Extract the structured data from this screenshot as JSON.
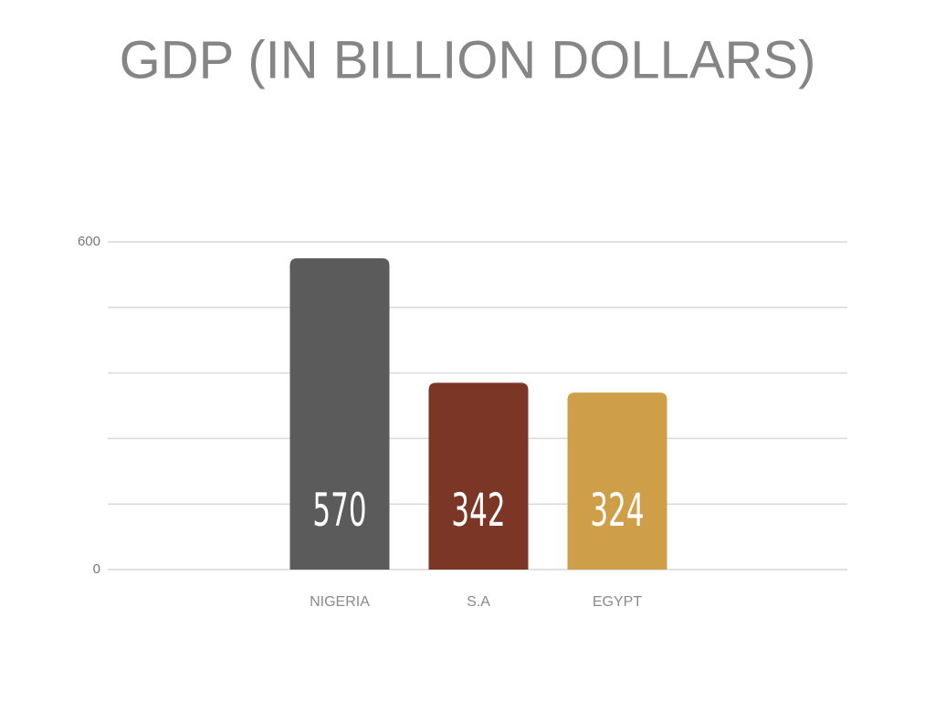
{
  "chart_data": {
    "type": "bar",
    "title": "GDP (IN BILLION DOLLARS)",
    "categories": [
      "NIGERIA",
      "S.A",
      "EGYPT"
    ],
    "values": [
      570,
      342,
      324
    ],
    "colors": [
      "#5b5b5b",
      "#7b3626",
      "#cf9e48"
    ],
    "ylim": [
      0,
      600
    ],
    "yticks": [
      0,
      600
    ],
    "ygrid": [
      0,
      120,
      240,
      360,
      480,
      600
    ],
    "grid": true
  }
}
